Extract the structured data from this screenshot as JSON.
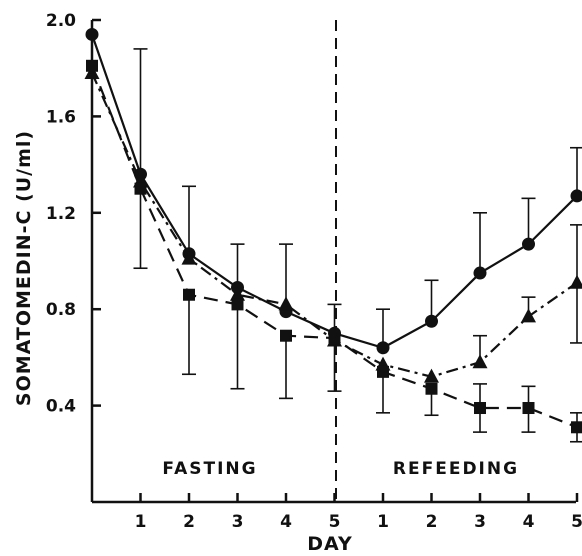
{
  "chart_data": {
    "type": "line",
    "title": "",
    "xlabel": "DAY",
    "ylabel": "SOMATOMEDIN-C (U/ml)",
    "ylim": [
      0,
      2.0
    ],
    "y_ticks": [
      "0.4",
      "0.8",
      "1.2",
      "1.6",
      "2.0"
    ],
    "x_ticks": [
      "1",
      "2",
      "3",
      "4",
      "5",
      "1",
      "2",
      "3",
      "4",
      "5"
    ],
    "phases": [
      "FASTING",
      "REFEEDING"
    ],
    "grid": false,
    "series": [
      {
        "marker": "circle",
        "line_style": "solid",
        "x": [
          0,
          1,
          2,
          3,
          4,
          5,
          6,
          7,
          8,
          9,
          10
        ],
        "values": [
          1.94,
          1.36,
          1.03,
          0.89,
          0.79,
          0.7,
          0.64,
          0.75,
          0.95,
          1.07,
          1.27
        ],
        "error_upper": [
          null,
          1.88,
          1.31,
          1.07,
          1.07,
          0.82,
          0.8,
          0.92,
          1.2,
          1.26,
          1.47
        ],
        "error_lower": [
          null,
          null,
          null,
          null,
          null,
          null,
          null,
          null,
          null,
          null,
          null
        ]
      },
      {
        "marker": "triangle",
        "line_style": "dash-dot",
        "x": [
          0,
          1,
          2,
          3,
          4,
          5,
          6,
          7,
          8,
          9,
          10
        ],
        "values": [
          1.78,
          1.33,
          1.01,
          0.86,
          0.82,
          0.67,
          0.57,
          0.52,
          0.58,
          0.77,
          0.91
        ],
        "error_upper": [
          null,
          null,
          null,
          null,
          null,
          null,
          null,
          null,
          0.69,
          0.85,
          1.15
        ],
        "error_lower": [
          null,
          null,
          null,
          null,
          null,
          null,
          null,
          null,
          null,
          null,
          0.66
        ]
      },
      {
        "marker": "square",
        "line_style": "dashed",
        "x": [
          0,
          1,
          2,
          3,
          4,
          5,
          6,
          7,
          8,
          9,
          10
        ],
        "values": [
          1.81,
          1.3,
          0.86,
          0.82,
          0.69,
          0.68,
          0.54,
          0.47,
          0.39,
          0.39,
          0.31
        ],
        "error_upper": [
          null,
          null,
          null,
          null,
          null,
          null,
          null,
          null,
          0.49,
          0.48,
          0.37
        ],
        "error_lower": [
          null,
          0.97,
          0.53,
          0.47,
          0.43,
          0.46,
          0.37,
          0.36,
          0.29,
          0.29,
          0.25
        ]
      }
    ]
  }
}
